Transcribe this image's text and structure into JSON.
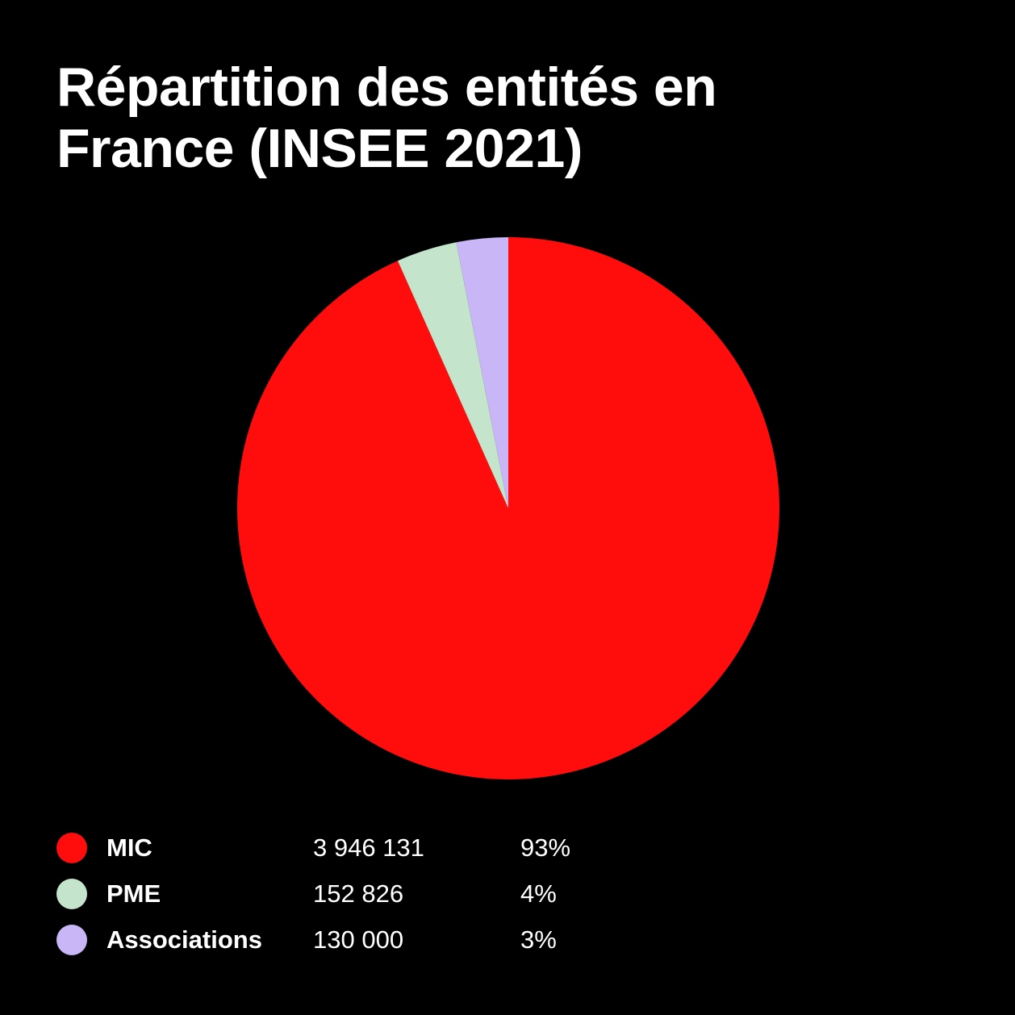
{
  "chart_data": {
    "type": "pie",
    "title_lines": [
      "Répartition des entités en",
      "France (INSEE 2021)"
    ],
    "categories": [
      "MIC",
      "PME",
      "Associations"
    ],
    "values": [
      3946131,
      152826,
      130000
    ],
    "value_labels": [
      "3 946 131",
      "152 826",
      "130 000"
    ],
    "percent_labels": [
      "93%",
      "4%",
      "3%"
    ],
    "colors": [
      "#ff0d0d",
      "#c4e5cc",
      "#c8b6f6"
    ],
    "legend_placement": "bottom-left"
  }
}
